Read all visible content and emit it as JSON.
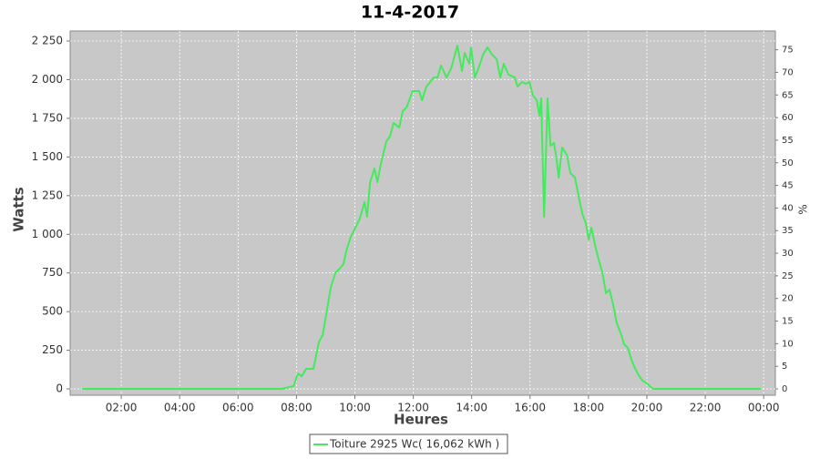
{
  "chart_data": {
    "type": "line",
    "title": "11-4-2017",
    "xlabel": "Heures",
    "ylabel": "Watts",
    "y2label": "%",
    "x": [
      0.66,
      7.5,
      7.9,
      8.05,
      8.18,
      8.33,
      8.58,
      8.77,
      8.9,
      9.02,
      9.18,
      9.33,
      9.45,
      9.61,
      9.71,
      9.86,
      10.02,
      10.17,
      10.33,
      10.42,
      10.52,
      10.67,
      10.77,
      10.89,
      11.08,
      11.2,
      11.33,
      11.52,
      11.64,
      11.77,
      11.98,
      12.2,
      12.3,
      12.45,
      12.58,
      12.7,
      12.83,
      12.95,
      13.14,
      13.3,
      13.51,
      13.67,
      13.76,
      13.92,
      13.98,
      14.11,
      14.23,
      14.39,
      14.54,
      14.7,
      14.86,
      14.98,
      15.1,
      15.26,
      15.48,
      15.57,
      15.73,
      15.85,
      15.98,
      16.1,
      16.23,
      16.32,
      16.38,
      16.48,
      16.6,
      16.7,
      16.82,
      16.91,
      16.98,
      17.1,
      17.26,
      17.38,
      17.54,
      17.66,
      17.79,
      17.91,
      18.01,
      18.1,
      18.23,
      18.35,
      18.48,
      18.6,
      18.72,
      18.85,
      18.97,
      19.1,
      19.22,
      19.35,
      19.47,
      19.6,
      19.72,
      19.85,
      19.97,
      20.1,
      20.22,
      23.9
    ],
    "series": [
      {
        "name": "Toiture 2925 Wc( 16,062 kWh )",
        "color": "#44ea5e",
        "values": [
          0,
          0,
          18,
          100,
          82,
          130,
          130,
          306,
          348,
          483,
          660,
          748,
          772,
          807,
          895,
          984,
          1043,
          1101,
          1208,
          1113,
          1337,
          1425,
          1337,
          1455,
          1602,
          1632,
          1720,
          1690,
          1796,
          1820,
          1926,
          1926,
          1867,
          1955,
          1985,
          2014,
          2014,
          2091,
          2014,
          2073,
          2220,
          2056,
          2173,
          2103,
          2209,
          2014,
          2073,
          2162,
          2209,
          2162,
          2132,
          2014,
          2103,
          2032,
          2014,
          1955,
          1985,
          1973,
          1985,
          1897,
          1867,
          1767,
          1879,
          1113,
          1879,
          1573,
          1590,
          1484,
          1367,
          1561,
          1514,
          1396,
          1367,
          1249,
          1131,
          1072,
          966,
          1043,
          925,
          836,
          748,
          619,
          642,
          542,
          424,
          365,
          289,
          265,
          189,
          130,
          88,
          53,
          41,
          18,
          0,
          0
        ]
      }
    ],
    "xlim": [
      0.25,
      24.4
    ],
    "xticks": [
      {
        "value": 2,
        "label": "02:00"
      },
      {
        "value": 4,
        "label": "04:00"
      },
      {
        "value": 6,
        "label": "06:00"
      },
      {
        "value": 8,
        "label": "08:00"
      },
      {
        "value": 10,
        "label": "10:00"
      },
      {
        "value": 12,
        "label": "12:00"
      },
      {
        "value": 14,
        "label": "14:00"
      },
      {
        "value": 16,
        "label": "16:00"
      },
      {
        "value": 18,
        "label": "18:00"
      },
      {
        "value": 20,
        "label": "20:00"
      },
      {
        "value": 22,
        "label": "22:00"
      },
      {
        "value": 24,
        "label": "00:00"
      }
    ],
    "ylim": [
      -41,
      2315
    ],
    "yticks": [
      0,
      250,
      500,
      750,
      {
        "value": 1000,
        "label": "1 000"
      },
      {
        "value": 1250,
        "label": "1 250"
      },
      {
        "value": 1500,
        "label": "1 500"
      },
      {
        "value": 1750,
        "label": "1 750"
      },
      {
        "value": 2000,
        "label": "2 000"
      },
      {
        "value": 2250,
        "label": "2 250"
      }
    ],
    "y2lim": [
      -1.4,
      79.15
    ],
    "y2ticks": [
      0,
      5,
      10,
      15,
      20,
      25,
      30,
      35,
      40,
      45,
      50,
      55,
      60,
      65,
      70,
      75
    ],
    "grid": true,
    "legend": "bottom"
  }
}
